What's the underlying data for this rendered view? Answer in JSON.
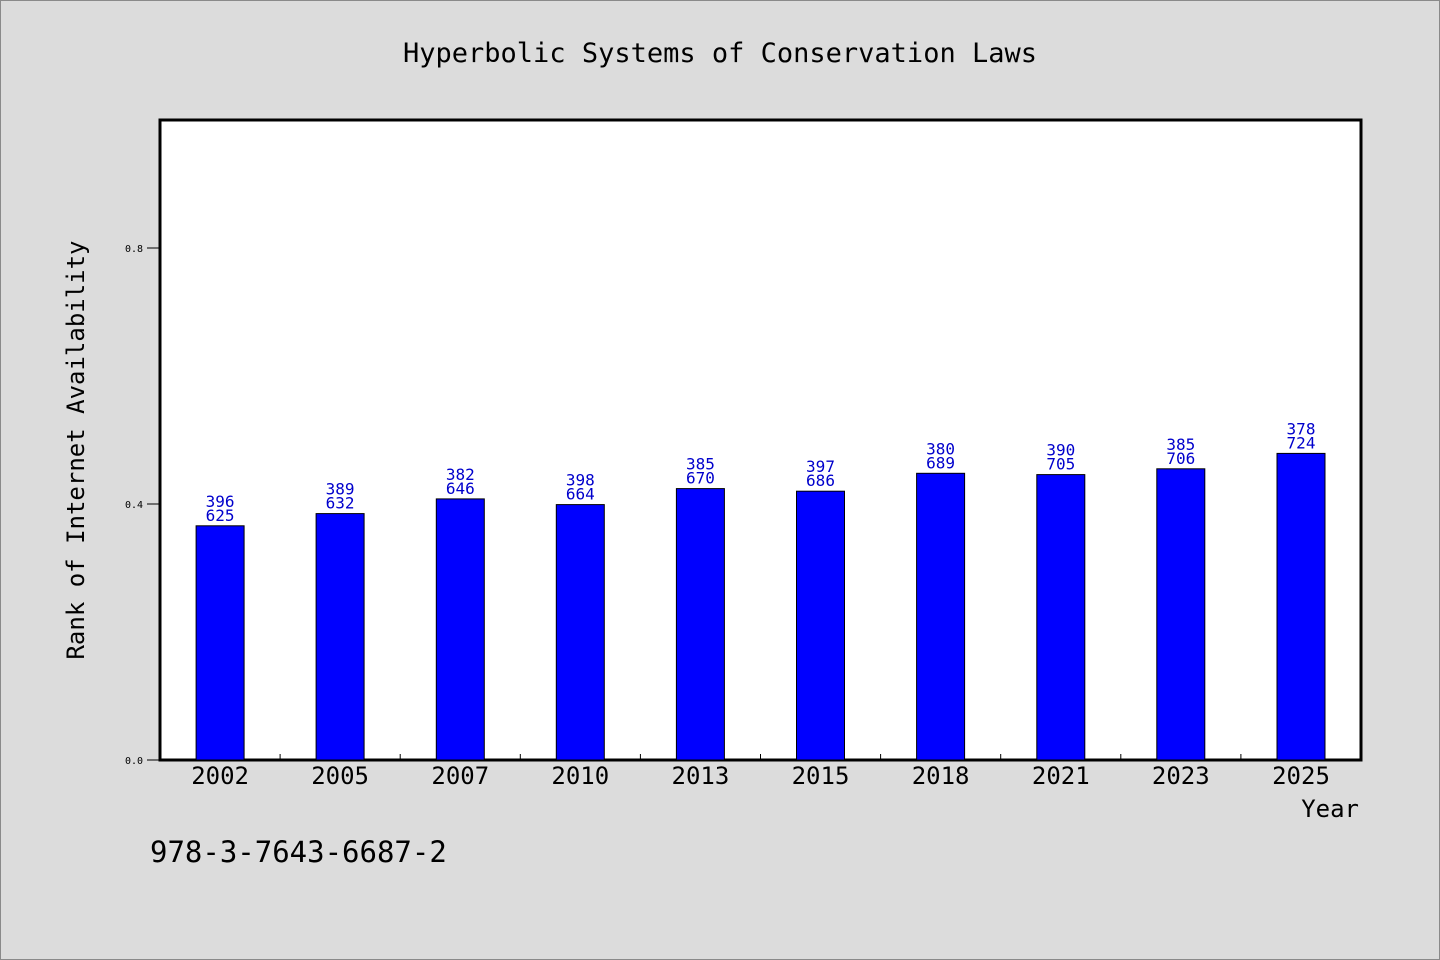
{
  "footer_text": "978-3-7643-6687-2",
  "chart_data": {
    "type": "bar",
    "title": "Hyperbolic Systems of Conservation Laws",
    "xlabel": "Year",
    "ylabel": "Rank of Internet Availability",
    "ylim": [
      0,
      1.0
    ],
    "yticks": [
      0.0,
      0.4,
      0.8
    ],
    "ytick_labels": [
      "0.0",
      "0.4",
      "0.8"
    ],
    "grid": false,
    "categories": [
      "2002",
      "2005",
      "2007",
      "2010",
      "2013",
      "2015",
      "2018",
      "2021",
      "2023",
      "2025"
    ],
    "values": [
      0.366,
      0.385,
      0.408,
      0.399,
      0.424,
      0.42,
      0.448,
      0.446,
      0.455,
      0.479
    ],
    "bar_labels": [
      [
        "396",
        "625"
      ],
      [
        "389",
        "632"
      ],
      [
        "382",
        "646"
      ],
      [
        "398",
        "664"
      ],
      [
        "385",
        "670"
      ],
      [
        "397",
        "686"
      ],
      [
        "380",
        "689"
      ],
      [
        "390",
        "705"
      ],
      [
        "385",
        "706"
      ],
      [
        "378",
        "724"
      ]
    ],
    "bar_color": "#0000ff",
    "label_color": "#0000cc"
  }
}
